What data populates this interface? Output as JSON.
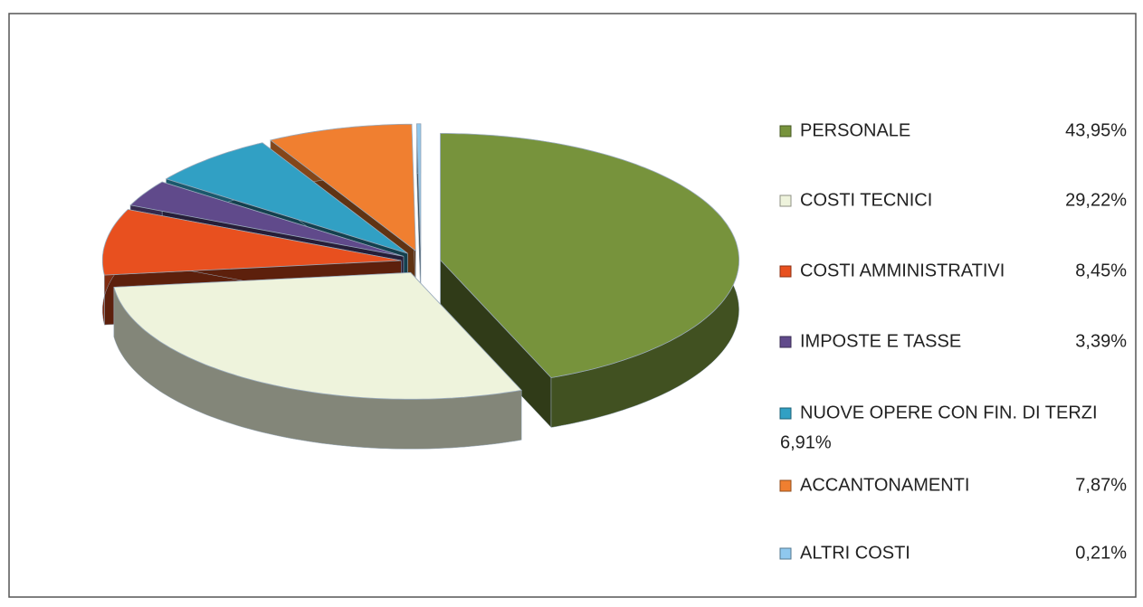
{
  "chart_data": {
    "type": "pie",
    "categories": [
      "PERSONALE",
      "COSTI TECNICI",
      "COSTI AMMINISTRATIVI",
      "IMPOSTE E TASSE",
      "NUOVE OPERE CON FIN. DI TERZI",
      "ACCANTONAMENTI",
      "ALTRI COSTI"
    ],
    "values": [
      43.95,
      29.22,
      8.45,
      3.39,
      6.91,
      7.87,
      0.21
    ],
    "value_labels": [
      "43,95%",
      "29,22%",
      "8,45%",
      "3,39%",
      "6,91%",
      "7,87%",
      "0,21%"
    ],
    "colors": [
      "#77933c",
      "#eef3dc",
      "#e8501f",
      "#604a8b",
      "#31a0c4",
      "#f07f30",
      "#8fc8ee"
    ],
    "legend": "right"
  }
}
